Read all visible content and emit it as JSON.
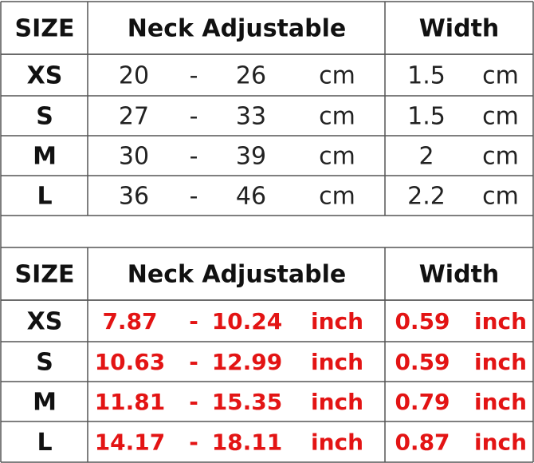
{
  "tables": [
    {
      "header": [
        "SIZE",
        "Neck Adjustable",
        "Width"
      ],
      "rows": [
        [
          "XS",
          "20",
          "-",
          "26",
          "cm",
          "1.5",
          "cm"
        ],
        [
          "S",
          "27",
          "-",
          "33",
          "cm",
          "1.5",
          "cm"
        ],
        [
          "M",
          "30",
          "-",
          "39",
          "cm",
          "2",
          "cm"
        ],
        [
          "L",
          "36",
          "-",
          "46",
          "cm",
          "2.2",
          "cm"
        ]
      ]
    },
    {
      "header": [
        "SIZE",
        "Neck Adjustable",
        "Width"
      ],
      "rows": [
        [
          "XS",
          "7.87",
          "-",
          "10.24",
          "inch",
          "0.59",
          "inch"
        ],
        [
          "S",
          "10.63",
          "-",
          "12.99",
          "inch",
          "0.59",
          "inch"
        ],
        [
          "M",
          "11.81",
          "-",
          "15.35",
          "inch",
          "0.79",
          "inch"
        ],
        [
          "L",
          "14.17",
          "-",
          "18.11",
          "inch",
          "0.87",
          "inch"
        ]
      ]
    }
  ]
}
